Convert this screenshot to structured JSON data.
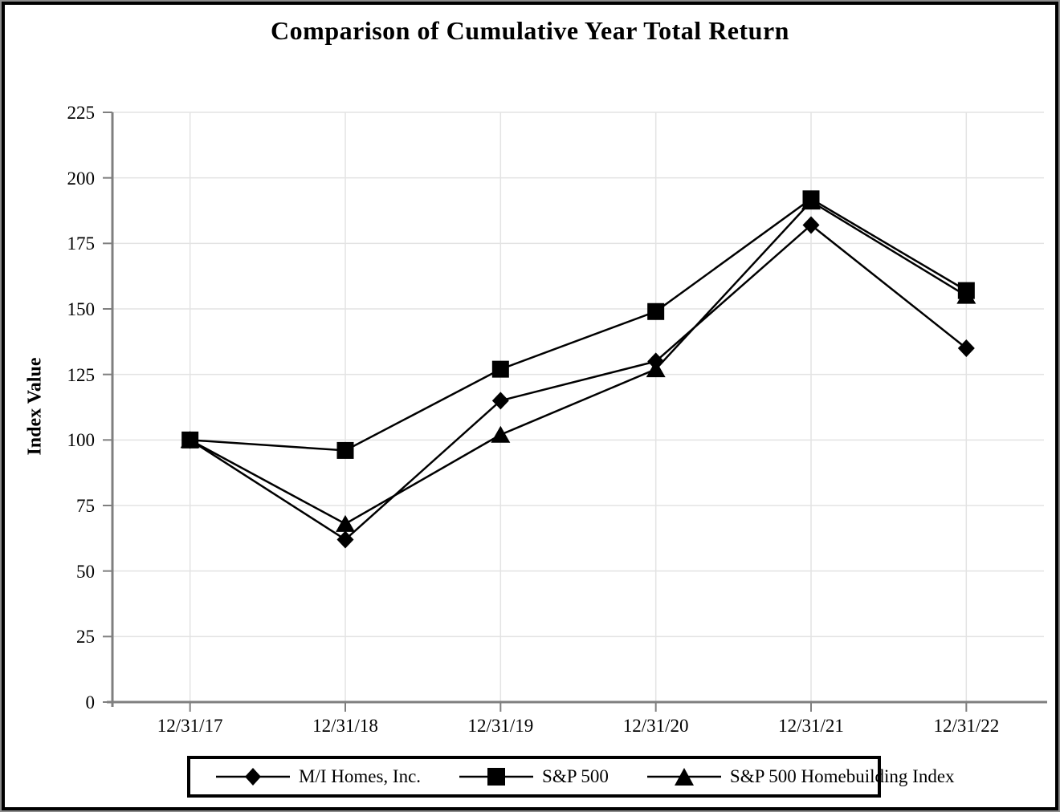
{
  "page": {
    "title": "Comparison of Cumulative Year Total Return"
  },
  "chart_data": {
    "type": "line",
    "title": "Comparison of Cumulative Year Total Return",
    "xlabel": "",
    "ylabel": "Index Value",
    "categories": [
      "12/31/17",
      "12/31/18",
      "12/31/19",
      "12/31/20",
      "12/31/21",
      "12/31/22"
    ],
    "series": [
      {
        "name": "M/I Homes, Inc.",
        "marker": "diamond",
        "values": [
          100,
          62,
          115,
          130,
          182,
          135
        ]
      },
      {
        "name": "S&P 500",
        "marker": "square",
        "values": [
          100,
          96,
          127,
          149,
          192,
          157
        ]
      },
      {
        "name": "S&P 500 Homebuilding Index",
        "marker": "triangle",
        "values": [
          100,
          68,
          102,
          127,
          191,
          155
        ]
      }
    ],
    "ylim": [
      0,
      225
    ],
    "yticks": [
      0,
      25,
      50,
      75,
      100,
      125,
      150,
      175,
      200,
      225
    ],
    "grid": true,
    "legend_position": "bottom",
    "colors": {
      "series": "#000000",
      "grid": "#e3e3e3",
      "axis": "#7f7f7f",
      "text": "#000000",
      "background": "#ffffff"
    }
  }
}
